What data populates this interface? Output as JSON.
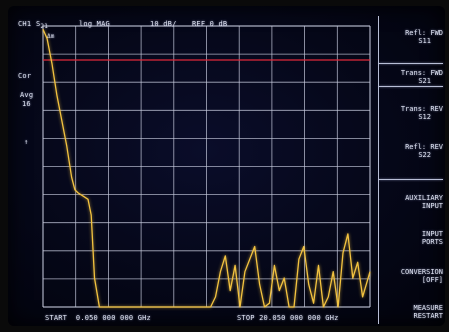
{
  "header": {
    "channel": "CH1",
    "parameter_main": "S",
    "parameter_sub": "21",
    "format": "log MAG",
    "scale": "10 dB/",
    "reference": "REF 0 dB"
  },
  "left_annotations": {
    "correction": "Cor",
    "averaging_label": "Avg",
    "averaging_count": "16",
    "arrow": "↑",
    "marker_flag": "Δm"
  },
  "footer": {
    "start": "START  0.050 000 000 GHz",
    "stop": "STOP 20.050 000 000 GHz"
  },
  "softkeys": [
    {
      "line1": "Refl: FWD",
      "line2": "S11"
    },
    {
      "line1": "Trans: FWD",
      "line2": "S21"
    },
    {
      "line1": "Trans: REV",
      "line2": "S12"
    },
    {
      "line1": "Refl: REV",
      "line2": "S22"
    },
    {
      "line1": "AUXILIARY",
      "line2": "INPUT"
    },
    {
      "line1": "INPUT",
      "line2": "PORTS"
    },
    {
      "line1": "CONVERSION",
      "line2": "[OFF]"
    },
    {
      "line1": "MEASURE",
      "line2": "RESTART"
    }
  ],
  "colors": {
    "grid": "#c9cde0",
    "trace": "#f3c340",
    "reference_line": "#e0293a",
    "text": "#dfe3f2"
  },
  "chart_data": {
    "type": "line",
    "xlabel": "",
    "ylabel": "",
    "x_range_ghz": [
      0.05,
      20.05
    ],
    "y_range_db": [
      -100,
      0
    ],
    "y_per_division_db": 10,
    "reference_db": 0,
    "grid": true,
    "series": [
      {
        "x": [
          0.05,
          0.3,
          0.6,
          0.9,
          1.2,
          1.5,
          1.8,
          2.0,
          2.2,
          2.5,
          2.8,
          3.0,
          3.2,
          3.5,
          3.8,
          4.0,
          4.3,
          4.6,
          5.0,
          5.5,
          6.0,
          6.5,
          7.0,
          7.5,
          8.0,
          8.5,
          9.0,
          9.5,
          10.0,
          10.3,
          10.6,
          10.9,
          11.2,
          11.5,
          11.8,
          12.1,
          12.4,
          12.7,
          13.0,
          13.3,
          13.6,
          13.9,
          14.2,
          14.5,
          14.8,
          15.1,
          15.4,
          15.7,
          16.0,
          16.3,
          16.6,
          16.9,
          17.2,
          17.5,
          17.8,
          18.1,
          18.4,
          18.7,
          19.0,
          19.3,
          19.6,
          20.05
        ],
        "y": [
          -1,
          -4,
          -12,
          -22,
          -30,
          -38,
          -48,
          -52,
          -53,
          -54,
          -55,
          -60,
          -80,
          -100,
          -100,
          -100,
          -100,
          -100,
          -100,
          -100,
          -100,
          -100,
          -100,
          -100,
          -100,
          -100,
          -100,
          -100,
          -100,
          -95,
          -86,
          -78,
          -73,
          -84,
          -76,
          -90,
          -78,
          -74,
          -70,
          -82,
          -92,
          -88,
          -76,
          -84,
          -80,
          -94,
          -90,
          -74,
          -70,
          -82,
          -88,
          -76,
          -96,
          -86,
          -78,
          -90,
          -72,
          -66,
          -80,
          -75,
          -86,
          -78
        ]
      }
    ]
  }
}
